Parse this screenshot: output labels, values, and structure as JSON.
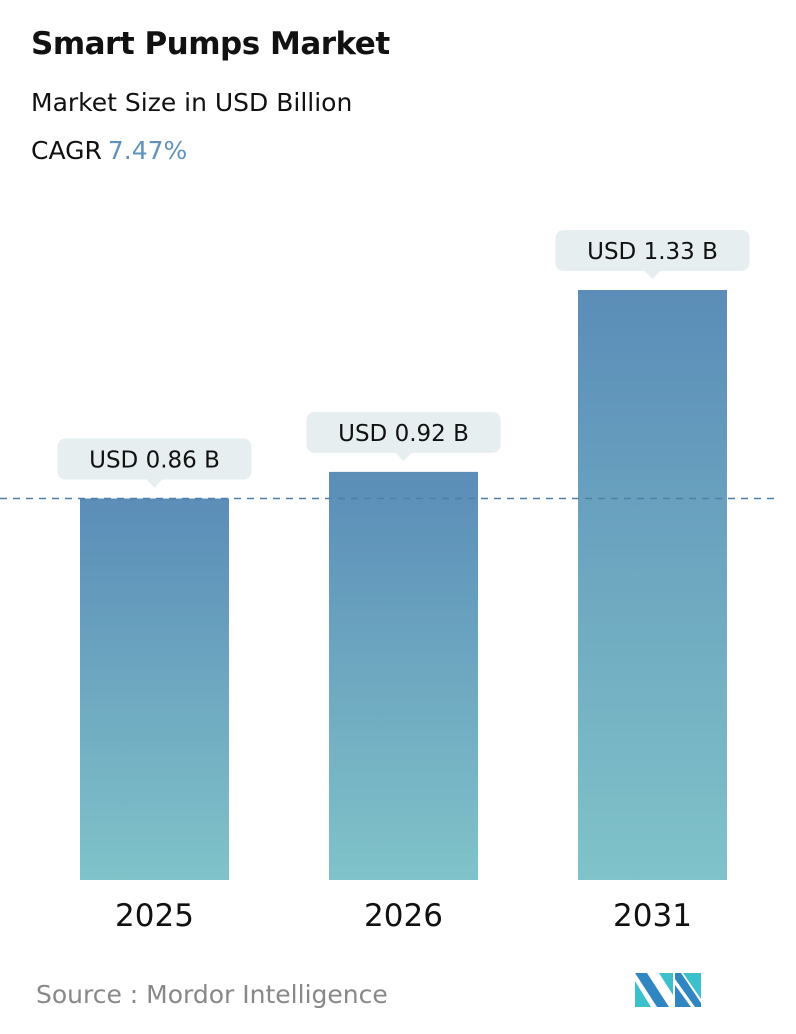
{
  "chart_data": {
    "type": "bar",
    "title": "Smart Pumps Market",
    "subtitle": "Market Size in USD Billion",
    "cagr_label": "CAGR",
    "cagr_value": "7.47%",
    "categories": [
      "2025",
      "2026",
      "2031"
    ],
    "values": [
      0.86,
      0.92,
      1.33
    ],
    "data_labels": [
      "USD 0.86 B",
      "USD 0.92 B",
      "USD 1.33 B"
    ],
    "ylim": [
      0,
      1.33
    ],
    "reference_line_value": 0.86,
    "grid": false,
    "colors": {
      "bar_top": "#5b8db8",
      "bar_bottom": "#80c3c9",
      "label_bg": "#e6eef0",
      "accent": "#5f93bd"
    }
  },
  "source": "Source :  Mordor Intelligence",
  "logo": {
    "name": "mordor-intelligence-logo"
  }
}
